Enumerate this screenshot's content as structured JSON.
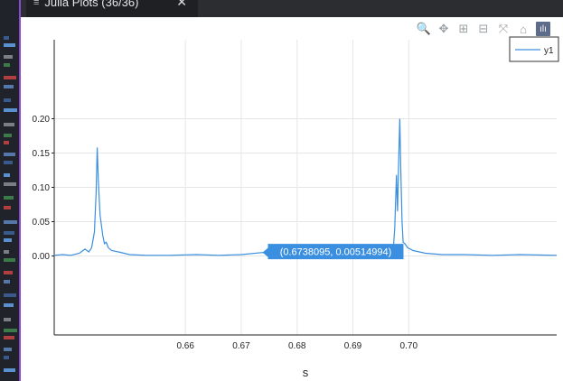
{
  "tab": {
    "title": "Julia Plots (36/36)",
    "menu_icon": "hamburger-icon",
    "close_icon": "close-icon"
  },
  "toolbar": {
    "items": [
      {
        "name": "zoom-icon",
        "glyph": "🔍"
      },
      {
        "name": "pan-icon",
        "glyph": "✥"
      },
      {
        "name": "zoom-in-icon",
        "glyph": "⊞"
      },
      {
        "name": "zoom-out-icon",
        "glyph": "⊟"
      },
      {
        "name": "autoscale-icon",
        "glyph": "⤧"
      },
      {
        "name": "home-icon",
        "glyph": "⌂"
      },
      {
        "name": "plotly-logo-icon",
        "glyph": "ılı"
      }
    ]
  },
  "tooltip": {
    "text": "(0.6738095, 0.00514994)"
  },
  "chart_data": {
    "type": "line",
    "xlabel": "s",
    "ylabel": "",
    "xlim": [
      0.6365,
      0.7265
    ],
    "ylim": [
      -0.115,
      0.315
    ],
    "xticks": [
      0.66,
      0.67,
      0.68,
      0.69,
      0.7
    ],
    "xtick_labels": [
      "0.66",
      "0.67",
      "0.68",
      "0.69",
      "0.70"
    ],
    "yticks": [
      0.0,
      0.05,
      0.1,
      0.15,
      0.2
    ],
    "ytick_labels": [
      "0.00",
      "0.05",
      "0.10",
      "0.15",
      "0.20"
    ],
    "grid": true,
    "legend": "top-right",
    "series": [
      {
        "name": "y1",
        "color": "#3b8fe0",
        "points": [
          [
            0.6365,
            0.001
          ],
          [
            0.638,
            0.002
          ],
          [
            0.6395,
            0.001
          ],
          [
            0.641,
            0.004
          ],
          [
            0.642,
            0.01
          ],
          [
            0.6427,
            0.006
          ],
          [
            0.6432,
            0.012
          ],
          [
            0.6437,
            0.035
          ],
          [
            0.644,
            0.09
          ],
          [
            0.6442,
            0.158
          ],
          [
            0.6444,
            0.11
          ],
          [
            0.6447,
            0.06
          ],
          [
            0.6452,
            0.03
          ],
          [
            0.6455,
            0.018
          ],
          [
            0.6458,
            0.02
          ],
          [
            0.6462,
            0.012
          ],
          [
            0.6468,
            0.008
          ],
          [
            0.648,
            0.006
          ],
          [
            0.65,
            0.002
          ],
          [
            0.653,
            0.001
          ],
          [
            0.657,
            0.001
          ],
          [
            0.662,
            0.002
          ],
          [
            0.666,
            0.001
          ],
          [
            0.67,
            0.002
          ],
          [
            0.6738,
            0.005
          ],
          [
            0.676,
            0.003
          ],
          [
            0.68,
            0.002
          ],
          [
            0.685,
            0.001
          ],
          [
            0.69,
            0.002
          ],
          [
            0.694,
            0.002
          ],
          [
            0.696,
            0.004
          ],
          [
            0.6972,
            0.006
          ],
          [
            0.6975,
            0.04
          ],
          [
            0.6978,
            0.118
          ],
          [
            0.698,
            0.065
          ],
          [
            0.6982,
            0.14
          ],
          [
            0.6984,
            0.2
          ],
          [
            0.6986,
            0.12
          ],
          [
            0.6988,
            0.05
          ],
          [
            0.699,
            0.02
          ],
          [
            0.6993,
            0.018
          ],
          [
            0.6998,
            0.012
          ],
          [
            0.7008,
            0.008
          ],
          [
            0.703,
            0.004
          ],
          [
            0.706,
            0.002
          ],
          [
            0.71,
            0.002
          ],
          [
            0.715,
            0.001
          ],
          [
            0.72,
            0.002
          ],
          [
            0.7265,
            0.001
          ]
        ]
      }
    ],
    "hover_point": [
      0.6738095,
      0.00514994
    ]
  }
}
